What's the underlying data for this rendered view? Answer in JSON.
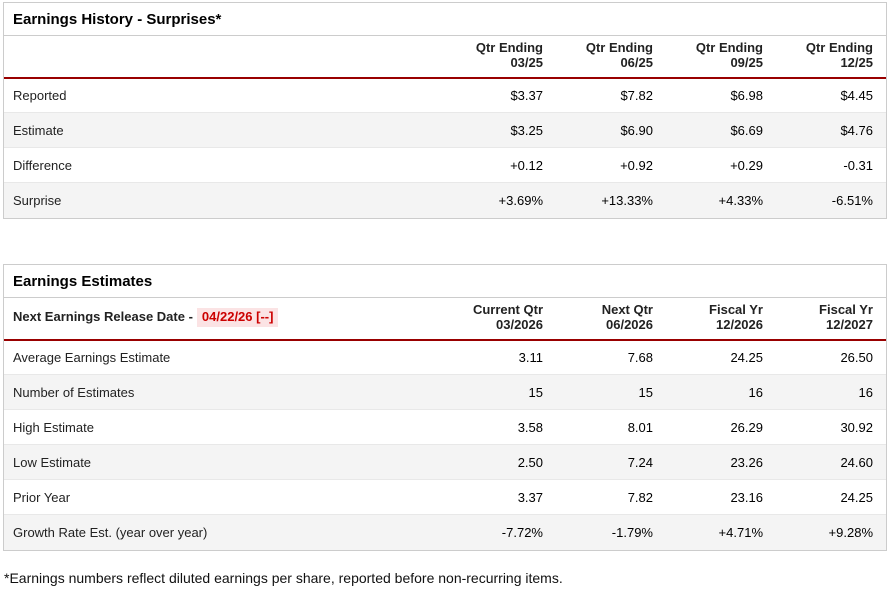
{
  "colors": {
    "positive": "#008000",
    "negative": "#cc0000",
    "header_rule": "#990000",
    "highlight_bg": "#fbe3e4",
    "stripe": "#f4f4f4"
  },
  "history": {
    "title": "Earnings History - Surprises*",
    "columns": [
      {
        "line1": "Qtr Ending",
        "line2": "03/25"
      },
      {
        "line1": "Qtr Ending",
        "line2": "06/25"
      },
      {
        "line1": "Qtr Ending",
        "line2": "09/25"
      },
      {
        "line1": "Qtr Ending",
        "line2": "12/25"
      }
    ],
    "rows": [
      {
        "label": "Reported",
        "values": [
          "$3.37",
          "$7.82",
          "$6.98",
          "$4.45"
        ]
      },
      {
        "label": "Estimate",
        "values": [
          "$3.25",
          "$6.90",
          "$6.69",
          "$4.76"
        ]
      },
      {
        "label": "Difference",
        "values": [
          "+0.12",
          "+0.92",
          "+0.29",
          "-0.31"
        ]
      },
      {
        "label": "Surprise",
        "values": [
          "+3.69%",
          "+13.33%",
          "+4.33%",
          "-6.51%"
        ]
      }
    ]
  },
  "estimates": {
    "title": "Earnings Estimates",
    "release_label": "Next Earnings Release Date -",
    "release_date": "04/22/26 [--]",
    "columns": [
      {
        "line1": "Current Qtr",
        "line2": "03/2026"
      },
      {
        "line1": "Next Qtr",
        "line2": "06/2026"
      },
      {
        "line1": "Fiscal Yr",
        "line2": "12/2026"
      },
      {
        "line1": "Fiscal Yr",
        "line2": "12/2027"
      }
    ],
    "rows": [
      {
        "label": "Average Earnings Estimate",
        "values": [
          "3.11",
          "7.68",
          "24.25",
          "26.50"
        ]
      },
      {
        "label": "Number of Estimates",
        "values": [
          "15",
          "15",
          "16",
          "16"
        ]
      },
      {
        "label": "High Estimate",
        "values": [
          "3.58",
          "8.01",
          "26.29",
          "30.92"
        ]
      },
      {
        "label": "Low Estimate",
        "values": [
          "2.50",
          "7.24",
          "23.26",
          "24.60"
        ]
      },
      {
        "label": "Prior Year",
        "values": [
          "3.37",
          "7.82",
          "23.16",
          "24.25"
        ]
      },
      {
        "label": "Growth Rate Est. (year over year)",
        "values": [
          "-7.72%",
          "-1.79%",
          "+4.71%",
          "+9.28%"
        ]
      }
    ]
  },
  "footnote": "*Earnings numbers reflect diluted earnings per share, reported before non-recurring items."
}
